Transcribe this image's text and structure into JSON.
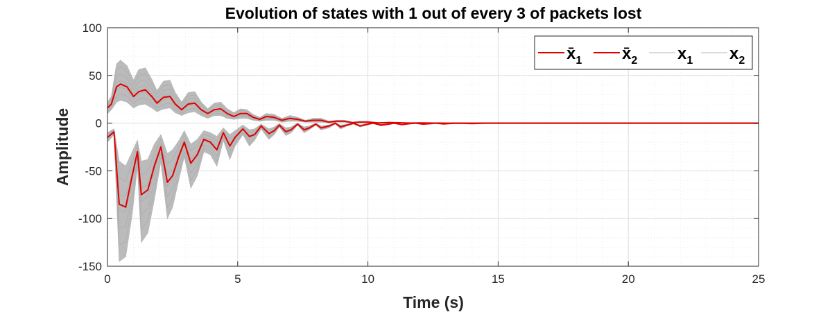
{
  "chart_data": {
    "type": "line",
    "title": "Evolution of states with 1 out of every 3 of packets lost",
    "xlabel": "Time (s)",
    "ylabel": "Amplitude",
    "xlim": [
      0,
      25
    ],
    "ylim": [
      -150,
      100
    ],
    "xticks": [
      0,
      5,
      10,
      15,
      20,
      25
    ],
    "yticks": [
      -150,
      -100,
      -50,
      0,
      50,
      100
    ],
    "grid": "on, with minor grid",
    "legend_position": "top-right",
    "colors": {
      "mean": "#e00000",
      "samples": "#b4b4b4"
    },
    "series": [
      {
        "name": "x̄₁",
        "legend_main": "x̄",
        "legend_sub": "1",
        "color": "#e00000",
        "x": [
          0,
          0.25,
          0.45,
          0.7,
          0.95,
          1.15,
          1.3,
          1.55,
          1.8,
          2.05,
          2.3,
          2.5,
          2.75,
          2.95,
          3.2,
          3.45,
          3.7,
          3.95,
          4.2,
          4.45,
          4.7,
          4.9,
          5.2,
          5.45,
          5.65,
          5.9,
          6.2,
          6.4,
          6.6,
          6.85,
          7.05,
          7.3,
          7.55,
          7.75,
          8.0,
          8.2,
          8.5,
          8.75,
          8.95,
          9.2,
          9.45,
          9.7,
          10.0,
          10.2,
          10.5,
          10.8,
          11.0,
          11.3,
          11.6,
          11.85,
          12.1,
          12.4,
          12.6,
          12.9,
          13.2,
          13.5,
          14.0,
          14.5,
          15.0,
          16.0,
          18.0,
          25.0
        ],
        "y": [
          -15,
          -9,
          -85,
          -88,
          -55,
          -30,
          -75,
          -70,
          -45,
          -25,
          -62,
          -55,
          -34,
          -20,
          -42,
          -33,
          -17,
          -20,
          -28,
          -10,
          -24,
          -15,
          -6,
          -14,
          -12,
          -3,
          -11,
          -8,
          -2,
          -9,
          -7,
          -1,
          -7,
          -5,
          -1,
          -5,
          -3,
          0,
          -4,
          -2,
          0,
          -3,
          -1,
          0,
          -2,
          -1,
          0,
          -1.5,
          -0.5,
          0,
          -1,
          -0.5,
          0,
          -0.8,
          -0.3,
          0,
          -0.4,
          0,
          0,
          0,
          0,
          0
        ]
      },
      {
        "name": "x̄₂",
        "legend_main": "x̄",
        "legend_sub": "2",
        "color": "#e00000",
        "x": [
          0,
          0.15,
          0.35,
          0.5,
          0.75,
          1.0,
          1.2,
          1.45,
          1.7,
          1.9,
          2.15,
          2.4,
          2.6,
          2.85,
          3.1,
          3.35,
          3.6,
          3.85,
          4.1,
          4.35,
          4.6,
          4.85,
          5.1,
          5.35,
          5.6,
          5.85,
          6.1,
          6.4,
          6.7,
          7.0,
          7.3,
          7.6,
          7.9,
          8.2,
          8.5,
          8.8,
          9.1,
          9.4,
          9.7,
          10.0,
          10.4,
          10.8,
          11.2,
          11.6,
          12.0,
          12.5,
          13.0,
          14.0,
          15.0,
          17.0,
          25.0
        ],
        "y": [
          16,
          20,
          38,
          41,
          38,
          28,
          33,
          35,
          28,
          21,
          27,
          28,
          20,
          14,
          20,
          21,
          14,
          10,
          14,
          15,
          10,
          7,
          10,
          10,
          6,
          4,
          7,
          6,
          3,
          5,
          4,
          2,
          3,
          3,
          1,
          2,
          2,
          0.5,
          1,
          1,
          0.3,
          0.6,
          0.4,
          0.1,
          0.3,
          0.1,
          0,
          0,
          0,
          0,
          0
        ]
      },
      {
        "name": "x₁",
        "legend_main": "x",
        "legend_sub": "1",
        "color": "#b4b4b4",
        "band": "Monte Carlo sample trajectories around x̄₁ (gray band)",
        "band_lower": [
          -20,
          -12,
          -145,
          -140,
          -95,
          -45,
          -125,
          -115,
          -80,
          -40,
          -100,
          -88,
          -58,
          -35,
          -68,
          -55,
          -30,
          -33,
          -45,
          -18,
          -38,
          -24,
          -12,
          -24,
          -18,
          -6,
          -17,
          -12,
          -4,
          -13,
          -10,
          -2,
          -10,
          -7,
          -2,
          -7,
          -5,
          -1,
          -6,
          -3,
          -1,
          -4,
          -2,
          0,
          -3,
          -1.5,
          0,
          -2,
          -1,
          0,
          -1.5,
          -1,
          0,
          -1,
          -0.5,
          0,
          -0.6,
          0,
          0,
          0,
          0,
          0
        ],
        "band_upper": [
          -10,
          -6,
          -40,
          -45,
          -30,
          -18,
          -40,
          -38,
          -22,
          -12,
          -32,
          -28,
          -18,
          -8,
          -22,
          -17,
          -8,
          -10,
          -14,
          -5,
          -12,
          -8,
          -2,
          -7,
          -6,
          -1,
          -6,
          -4,
          -0.5,
          -5,
          -4,
          0,
          -4,
          -3,
          0,
          -3,
          -2,
          0,
          -2,
          -1,
          0,
          -2,
          -0.5,
          0,
          -1,
          -0.5,
          0,
          -1,
          -0.2,
          0,
          -0.5,
          -0.2,
          0,
          -0.4,
          -0.1,
          0,
          -0.2,
          0,
          0,
          0,
          0,
          0
        ]
      },
      {
        "name": "x₂",
        "legend_main": "x",
        "legend_sub": "2",
        "color": "#b4b4b4",
        "band": "Monte Carlo sample trajectories around x̄₂ (gray band)",
        "band_lower": [
          10,
          14,
          22,
          24,
          22,
          16,
          19,
          20,
          16,
          12,
          15,
          16,
          11,
          8,
          11,
          12,
          8,
          5,
          8,
          8,
          5,
          4,
          5,
          5,
          3,
          2,
          3,
          3,
          1,
          2,
          2,
          1,
          1,
          1,
          0.5,
          1,
          1,
          0,
          0.5,
          0.5,
          0,
          0.3,
          0.2,
          0,
          0.1,
          0,
          0,
          0,
          0,
          0,
          0
        ],
        "band_upper": [
          22,
          28,
          62,
          66,
          60,
          45,
          56,
          58,
          46,
          34,
          44,
          45,
          32,
          22,
          32,
          33,
          22,
          15,
          21,
          22,
          15,
          11,
          15,
          14,
          9,
          6,
          10,
          9,
          5,
          8,
          6,
          3,
          5,
          5,
          2,
          3,
          3,
          1,
          2,
          2,
          0.6,
          1,
          0.7,
          0.2,
          0.5,
          0.2,
          0,
          0,
          0,
          0,
          0
        ]
      }
    ]
  }
}
